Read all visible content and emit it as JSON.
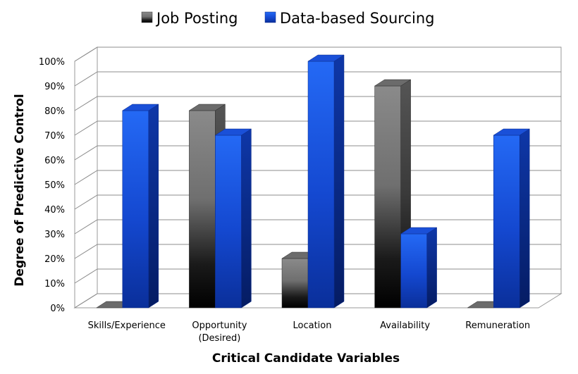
{
  "chart_data": {
    "type": "bar",
    "style": "3d-clustered-column",
    "title": "",
    "xlabel": "Critical Candidate Variables",
    "ylabel": "Degree of Predictive Control",
    "ylim": [
      0,
      100
    ],
    "y_unit": "%",
    "y_ticks": [
      "0%",
      "10%",
      "20%",
      "30%",
      "40%",
      "50%",
      "60%",
      "70%",
      "80%",
      "90%",
      "100%"
    ],
    "grid": true,
    "legend_position": "top",
    "categories": [
      {
        "line1": "Skills/Experience",
        "line2": ""
      },
      {
        "line1": "Opportunity",
        "line2": "(Desired)"
      },
      {
        "line1": "Location",
        "line2": ""
      },
      {
        "line1": "Availability",
        "line2": ""
      },
      {
        "line1": "Remuneration",
        "line2": ""
      }
    ],
    "series": [
      {
        "name": "Job Posting",
        "color": "#7f7f7f",
        "values": [
          0,
          80,
          20,
          90,
          0
        ]
      },
      {
        "name": "Data-based Sourcing",
        "color": "#1f5fe8",
        "values": [
          80,
          70,
          100,
          30,
          70
        ]
      }
    ]
  }
}
